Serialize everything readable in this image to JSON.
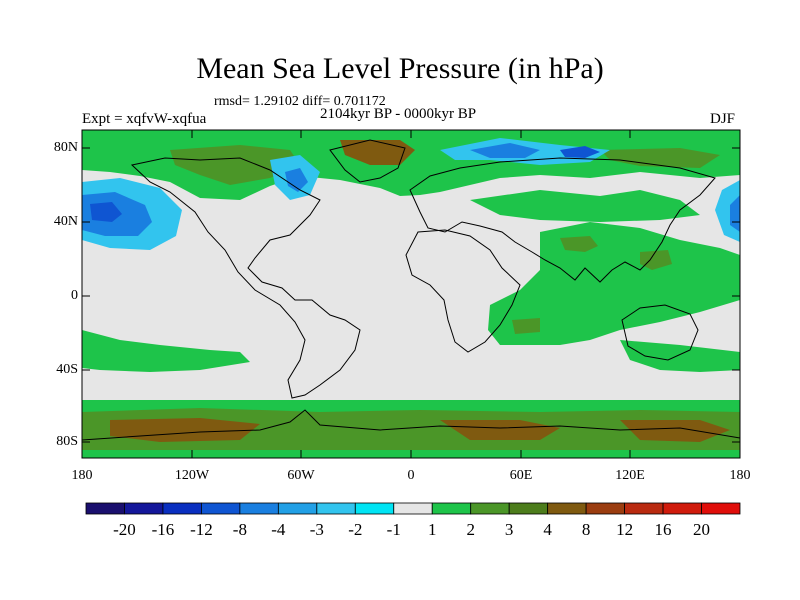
{
  "title": "Mean Sea Level Pressure (in hPa)",
  "stats": "rmsd= 1.29102 diff= 0.701172",
  "period": "2104kyr BP - 0000kyr BP",
  "experiment": "Expt = xqfvW-xqfua",
  "season": "DJF",
  "lat_labels": [
    "80N",
    "40N",
    "0",
    "40S",
    "80S"
  ],
  "lon_labels": [
    "180",
    "120W",
    "60W",
    "0",
    "60E",
    "120E",
    "180"
  ],
  "colorbar": {
    "labels": [
      "-20",
      "-16",
      "-12",
      "-8",
      "-4",
      "-3",
      "-2",
      "-1",
      "1",
      "2",
      "3",
      "4",
      "8",
      "12",
      "16",
      "20"
    ],
    "colors": [
      "#1a0f6e",
      "#14179a",
      "#0a2fc0",
      "#0f55d2",
      "#1a7fe0",
      "#22a0e6",
      "#32c4ee",
      "#00e4f4",
      "#e6e6e6",
      "#1ec44a",
      "#4b9628",
      "#4d7d1c",
      "#7f5a10",
      "#9b3d10",
      "#b92a10",
      "#d01b0c",
      "#e00e0a"
    ]
  },
  "colors": {
    "land_line": "#000000",
    "neutral": "#e6e6e6",
    "green": "#1ec44a",
    "olive": "#4b9628",
    "brown": "#7f5a10",
    "light_blue": "#32c4ee",
    "mid_blue": "#1a7fe0",
    "blue": "#0f55d2"
  }
}
